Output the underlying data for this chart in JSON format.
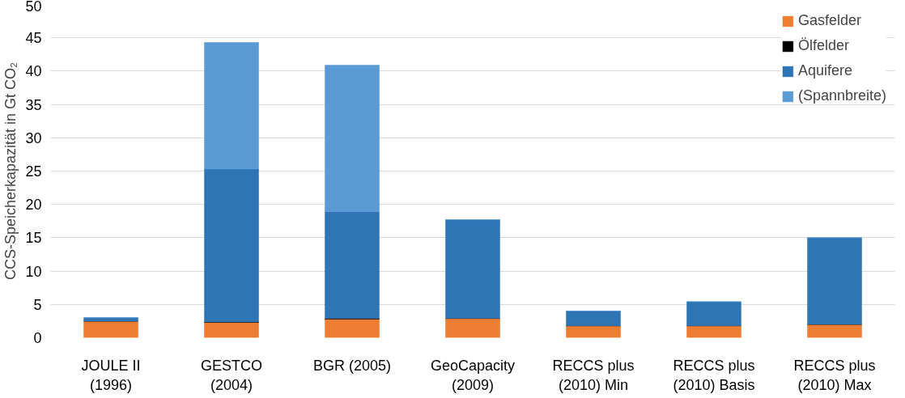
{
  "chart_data": {
    "type": "bar",
    "stacked": true,
    "ylabel": "CCS-Speicherkapazität in Gt CO₂",
    "categories": [
      "JOULE II\n(1996)",
      "GESTCO\n(2004)",
      "BGR (2005)",
      "GeoCapacity\n(2009)",
      "RECCS plus\n(2010) Min",
      "RECCS plus\n(2010) Basis",
      "RECCS plus\n(2010) Max"
    ],
    "series": [
      {
        "name": "Gasfelder",
        "color": "#ed7d31",
        "values": [
          2.5,
          2.3,
          2.8,
          2.9,
          1.8,
          1.8,
          2.0
        ]
      },
      {
        "name": "Ölfelder",
        "color": "#000000",
        "values": [
          0,
          0.1,
          0.1,
          0,
          0,
          0,
          0
        ]
      },
      {
        "name": "Aquifere",
        "color": "#2e75b6",
        "values": [
          0.5,
          22.9,
          16.0,
          14.8,
          2.2,
          3.6,
          13.0
        ]
      },
      {
        "name": "(Spannbreite)",
        "color": "#5b9bd5",
        "values": [
          0,
          19.0,
          22.0,
          0,
          0,
          0,
          0
        ]
      }
    ],
    "ylim": [
      0,
      50
    ],
    "yticks": [
      0,
      5,
      10,
      15,
      20,
      25,
      30,
      35,
      40,
      45,
      50
    ],
    "grid": "y",
    "legend": "top right"
  }
}
